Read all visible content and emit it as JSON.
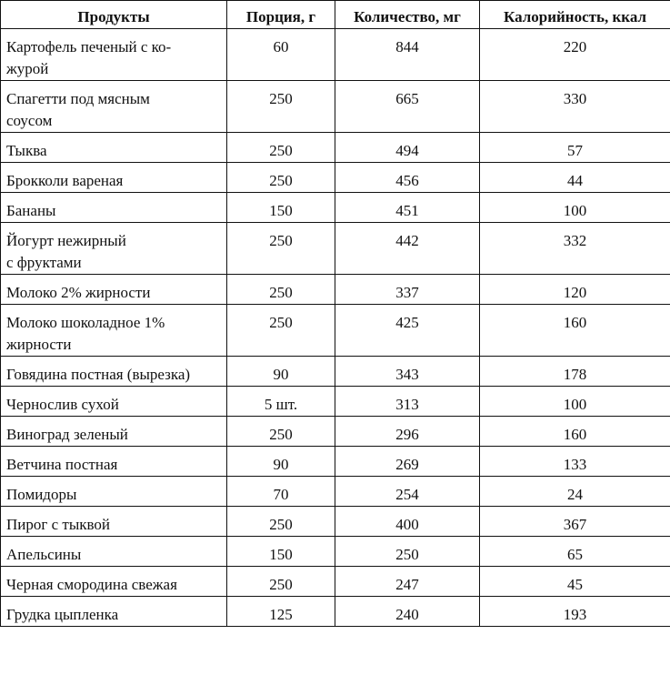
{
  "headers": [
    "Продукты",
    "Порция, г",
    "Количество, мг",
    "Калорийность, ккал"
  ],
  "rows": [
    {
      "product": "Картофель печеный с ко-\nжурой",
      "portion": "60",
      "amount": "844",
      "calories": "220"
    },
    {
      "product": "Спагетти под мясным\nсоусом",
      "portion": "250",
      "amount": "665",
      "calories": "330"
    },
    {
      "product": "Тыква",
      "portion": "250",
      "amount": "494",
      "calories": "57"
    },
    {
      "product": "Брокколи вареная",
      "portion": "250",
      "amount": "456",
      "calories": "44"
    },
    {
      "product": "Бананы",
      "portion": "150",
      "amount": "451",
      "calories": "100"
    },
    {
      "product": "Йогурт нежирный\nс фруктами",
      "portion": "250",
      "amount": "442",
      "calories": "332"
    },
    {
      "product": "Молоко 2% жирности",
      "portion": "250",
      "amount": "337",
      "calories": "120"
    },
    {
      "product": "Молоко шоколадное 1%\nжирности",
      "portion": "250",
      "amount": "425",
      "calories": "160"
    },
    {
      "product": "Говядина постная (вырезка)",
      "portion": "90",
      "amount": "343",
      "calories": "178"
    },
    {
      "product": "Чернослив сухой",
      "portion": "5 шт.",
      "amount": "313",
      "calories": "100"
    },
    {
      "product": "Виноград зеленый",
      "portion": "250",
      "amount": "296",
      "calories": "160"
    },
    {
      "product": "Ветчина постная",
      "portion": "90",
      "amount": "269",
      "calories": "133"
    },
    {
      "product": "Помидоры",
      "portion": "70",
      "amount": "254",
      "calories": "24"
    },
    {
      "product": "Пирог с тыквой",
      "portion": "250",
      "amount": "400",
      "calories": "367"
    },
    {
      "product": "Апельсины",
      "portion": "150",
      "amount": "250",
      "calories": "65"
    },
    {
      "product": "Черная смородина свежая",
      "portion": "250",
      "amount": "247",
      "calories": "45"
    },
    {
      "product": "Грудка цыпленка",
      "portion": "125",
      "amount": "240",
      "calories": "193"
    }
  ]
}
